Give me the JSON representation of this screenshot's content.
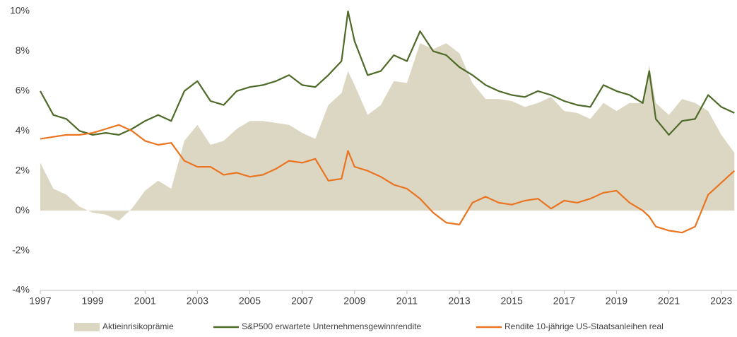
{
  "chart_data": {
    "type": "line",
    "x": [
      1997.0,
      1997.5,
      1998.0,
      1998.5,
      1999.0,
      1999.5,
      2000.0,
      2000.5,
      2001.0,
      2001.5,
      2002.0,
      2002.5,
      2003.0,
      2003.5,
      2004.0,
      2004.5,
      2005.0,
      2005.5,
      2006.0,
      2006.5,
      2007.0,
      2007.5,
      2008.0,
      2008.5,
      2008.75,
      2009.0,
      2009.5,
      2010.0,
      2010.5,
      2011.0,
      2011.5,
      2012.0,
      2012.5,
      2013.0,
      2013.5,
      2014.0,
      2014.5,
      2015.0,
      2015.5,
      2016.0,
      2016.5,
      2017.0,
      2017.5,
      2018.0,
      2018.5,
      2019.0,
      2019.5,
      2020.0,
      2020.25,
      2020.5,
      2021.0,
      2021.5,
      2022.0,
      2022.5,
      2023.0,
      2023.5
    ],
    "series": [
      {
        "name": "Aktieinrisikoprämie",
        "color": "#dcd7c3",
        "fill": "area",
        "values": [
          2.4,
          1.1,
          0.8,
          0.2,
          -0.1,
          -0.2,
          -0.5,
          0.1,
          1.0,
          1.5,
          1.1,
          3.5,
          4.3,
          3.3,
          3.5,
          4.1,
          4.5,
          4.5,
          4.4,
          4.3,
          3.9,
          3.6,
          5.3,
          5.9,
          7.0,
          6.3,
          4.8,
          5.3,
          6.5,
          6.4,
          8.4,
          8.1,
          8.4,
          7.9,
          6.4,
          5.6,
          5.6,
          5.5,
          5.2,
          5.4,
          5.7,
          5.0,
          4.9,
          4.6,
          5.4,
          5.0,
          5.4,
          5.4,
          7.3,
          5.4,
          4.8,
          5.6,
          5.4,
          5.0,
          3.8,
          2.9
        ]
      },
      {
        "name": "S&P500 erwartete Unternehmensgewinnrendite",
        "color": "#4e6a28",
        "values": [
          6.0,
          4.8,
          4.6,
          4.0,
          3.8,
          3.9,
          3.8,
          4.1,
          4.5,
          4.8,
          4.5,
          6.0,
          6.5,
          5.5,
          5.3,
          6.0,
          6.2,
          6.3,
          6.5,
          6.8,
          6.3,
          6.2,
          6.8,
          7.5,
          10.0,
          8.5,
          6.8,
          7.0,
          7.8,
          7.5,
          9.0,
          8.0,
          7.8,
          7.2,
          6.8,
          6.3,
          6.0,
          5.8,
          5.7,
          6.0,
          5.8,
          5.5,
          5.3,
          5.2,
          6.3,
          6.0,
          5.8,
          5.4,
          7.0,
          4.6,
          3.8,
          4.5,
          4.6,
          5.8,
          5.2,
          4.9
        ]
      },
      {
        "name": "Rendite 10-jährige US-Staatsanleihen real",
        "color": "#ea7420",
        "values": [
          3.6,
          3.7,
          3.8,
          3.8,
          3.9,
          4.1,
          4.3,
          4.0,
          3.5,
          3.3,
          3.4,
          2.5,
          2.2,
          2.2,
          1.8,
          1.9,
          1.7,
          1.8,
          2.1,
          2.5,
          2.4,
          2.6,
          1.5,
          1.6,
          3.0,
          2.2,
          2.0,
          1.7,
          1.3,
          1.1,
          0.6,
          -0.1,
          -0.6,
          -0.7,
          0.4,
          0.7,
          0.4,
          0.3,
          0.5,
          0.6,
          0.1,
          0.5,
          0.4,
          0.6,
          0.9,
          1.0,
          0.4,
          0.0,
          -0.3,
          -0.8,
          -1.0,
          -1.1,
          -0.8,
          0.8,
          1.4,
          2.0
        ]
      }
    ],
    "xlim": [
      1997,
      2023.6
    ],
    "xticks": [
      1997,
      1999,
      2001,
      2003,
      2005,
      2007,
      2009,
      2011,
      2013,
      2015,
      2017,
      2019,
      2021,
      2023
    ],
    "ylim": [
      -4,
      10
    ],
    "yticks": [
      {
        "value": -4,
        "label": "-4%"
      },
      {
        "value": -2,
        "label": "-2%"
      },
      {
        "value": 0,
        "label": "0%"
      },
      {
        "value": 2,
        "label": "2%"
      },
      {
        "value": 4,
        "label": "4%"
      },
      {
        "value": 6,
        "label": "6%"
      },
      {
        "value": 8,
        "label": "8%"
      },
      {
        "value": 10,
        "label": "10%"
      }
    ],
    "legend": "bottom"
  }
}
